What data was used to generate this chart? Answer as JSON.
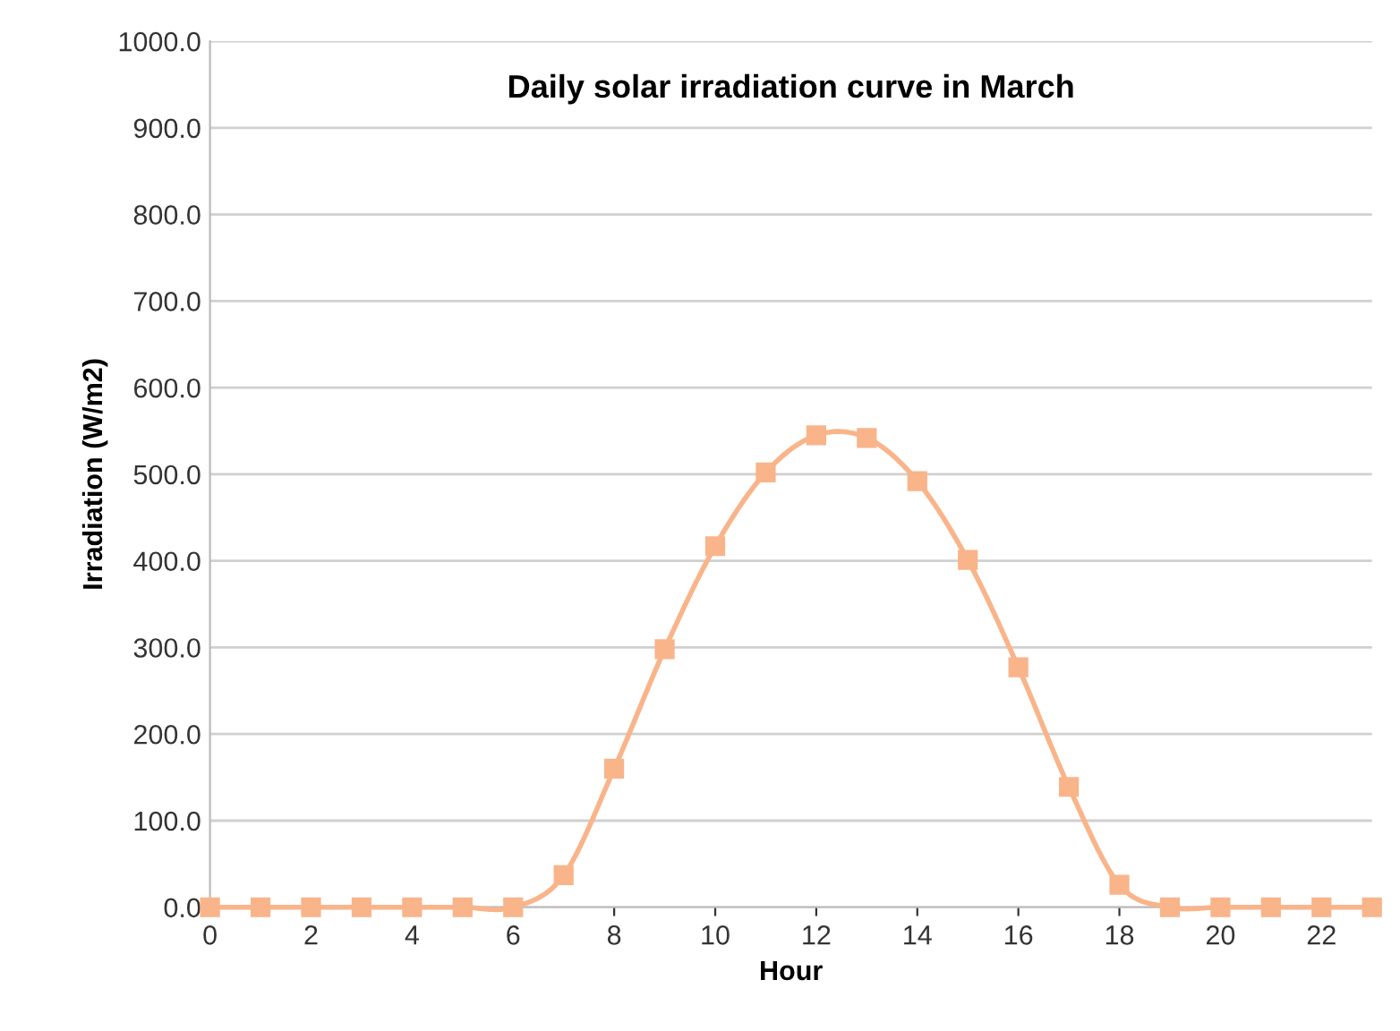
{
  "chart_data": {
    "type": "line",
    "title": "Daily solar irradiation curve in March",
    "xlabel": "Hour",
    "ylabel": "Irradiation (W/m2)",
    "x": [
      0,
      1,
      2,
      3,
      4,
      5,
      6,
      7,
      8,
      9,
      10,
      11,
      12,
      13,
      14,
      15,
      16,
      17,
      18,
      19,
      20,
      21,
      22,
      23
    ],
    "series": [
      {
        "color": "#f9b48a",
        "values": [
          0,
          0,
          0,
          0,
          0,
          0,
          0,
          37,
          160,
          298,
          417,
          502,
          545,
          542,
          492,
          401,
          277,
          139,
          26,
          0,
          0,
          0,
          0,
          0
        ]
      }
    ],
    "xlim": [
      0,
      23
    ],
    "xticks": [
      0,
      2,
      4,
      6,
      8,
      10,
      12,
      14,
      16,
      18,
      20,
      22
    ],
    "ylim": [
      0,
      1000
    ],
    "yticks": [
      {
        "value": 0,
        "label": "0.0"
      },
      {
        "value": 100,
        "label": "100.0"
      },
      {
        "value": 200,
        "label": "200.0"
      },
      {
        "value": 300,
        "label": "300.0"
      },
      {
        "value": 400,
        "label": "400.0"
      },
      {
        "value": 500,
        "label": "500.0"
      },
      {
        "value": 600,
        "label": "600.0"
      },
      {
        "value": 700,
        "label": "700.0"
      },
      {
        "value": 800,
        "label": "800.0"
      },
      {
        "value": 900,
        "label": "900.0"
      },
      {
        "value": 1000,
        "label": "1000.0"
      }
    ],
    "grid": "y",
    "marker": "square",
    "line_style": "solid",
    "legend": false
  }
}
